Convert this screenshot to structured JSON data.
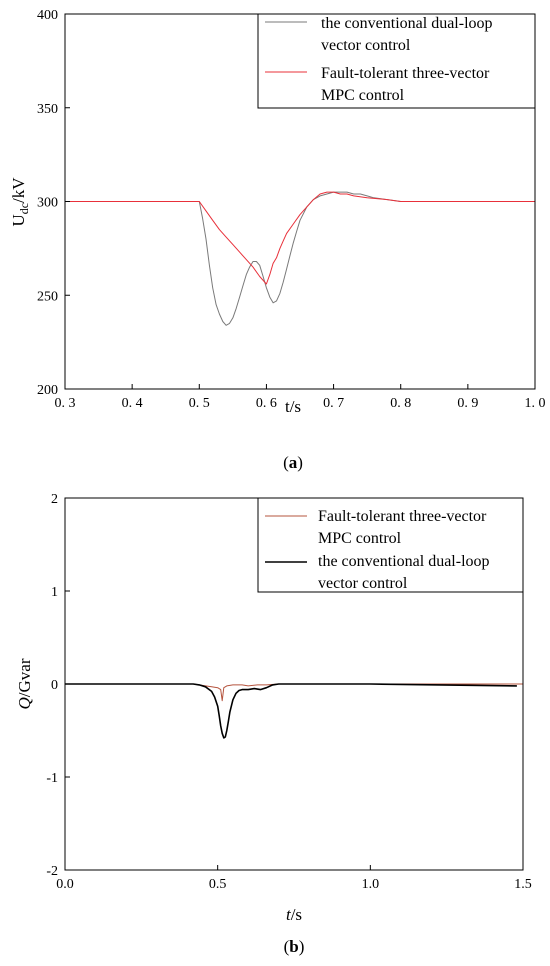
{
  "chart_data": [
    {
      "type": "line",
      "caption": "(a)",
      "caption_letter": "a",
      "xlabel": "t/s",
      "ylabel_main": "U",
      "ylabel_sub": "dc",
      "ylabel_unit": "/kV",
      "xlim": [
        0.3,
        1.0
      ],
      "ylim": [
        200,
        400
      ],
      "xticks": [
        0.3,
        0.4,
        0.5,
        0.6,
        0.7,
        0.8,
        0.9,
        1.0
      ],
      "xtick_labels": [
        "0. 3",
        "0. 4",
        "0. 5",
        "0. 6",
        "0. 7",
        "0. 8",
        "0. 9",
        "1. 0"
      ],
      "yticks": [
        200,
        250,
        300,
        350,
        400
      ],
      "ytick_labels": [
        "200",
        "250",
        "300",
        "350",
        "400"
      ],
      "legend_position": "top-right",
      "grid": false,
      "series": [
        {
          "name_line1": "the conventional dual-loop",
          "name_line2": "vector control",
          "color": "#7a7a7a",
          "x": [
            0.3,
            0.5,
            0.505,
            0.51,
            0.515,
            0.52,
            0.525,
            0.53,
            0.535,
            0.54,
            0.545,
            0.55,
            0.555,
            0.56,
            0.565,
            0.57,
            0.575,
            0.58,
            0.585,
            0.59,
            0.595,
            0.6,
            0.605,
            0.61,
            0.615,
            0.62,
            0.625,
            0.63,
            0.635,
            0.64,
            0.645,
            0.65,
            0.66,
            0.67,
            0.68,
            0.69,
            0.7,
            0.71,
            0.72,
            0.73,
            0.74,
            0.75,
            0.76,
            0.78,
            0.8,
            0.85,
            0.9,
            1.0
          ],
          "y": [
            300,
            300,
            291,
            280,
            266,
            254,
            245,
            240,
            236,
            234,
            235,
            238,
            243,
            249,
            255,
            261,
            265,
            268,
            268,
            266,
            260,
            254,
            249,
            246,
            247,
            251,
            257,
            264,
            271,
            278,
            284,
            290,
            297,
            301,
            303,
            304,
            305,
            305,
            305,
            304,
            304,
            303,
            302,
            301,
            300,
            300,
            300,
            300
          ]
        },
        {
          "name_line1": "Fault-tolerant three-vector",
          "name_line2": "MPC control",
          "color": "#e8303a",
          "x": [
            0.3,
            0.5,
            0.51,
            0.52,
            0.53,
            0.54,
            0.55,
            0.56,
            0.57,
            0.58,
            0.59,
            0.6,
            0.605,
            0.61,
            0.615,
            0.62,
            0.625,
            0.63,
            0.64,
            0.65,
            0.66,
            0.67,
            0.68,
            0.69,
            0.7,
            0.71,
            0.72,
            0.73,
            0.75,
            0.78,
            0.8,
            0.85,
            0.9,
            1.0
          ],
          "y": [
            300,
            300,
            295,
            290,
            285,
            281,
            277,
            273,
            269,
            265,
            260,
            256,
            261,
            267,
            270,
            275,
            279,
            283,
            288,
            293,
            297,
            301,
            304,
            305,
            305,
            304,
            304,
            303,
            302,
            301,
            300,
            300,
            300,
            300
          ]
        }
      ]
    },
    {
      "type": "line",
      "caption": "(b)",
      "caption_letter": "b",
      "xlabel_main": "t",
      "xlabel_unit": "/s",
      "ylabel_main": "Q",
      "ylabel_unit": "/Gvar",
      "xlim": [
        0.0,
        1.5
      ],
      "ylim": [
        -2,
        2
      ],
      "xticks": [
        0.0,
        0.5,
        1.0,
        1.5
      ],
      "xtick_labels": [
        "0.0",
        "0.5",
        "1.0",
        "1.5"
      ],
      "yticks": [
        -2,
        -1,
        0,
        1,
        2
      ],
      "ytick_labels": [
        "-2",
        "-1",
        "0",
        "1",
        "2"
      ],
      "legend_position": "top-right",
      "grid": false,
      "series": [
        {
          "name_line1": "Fault-tolerant three-vector",
          "name_line2": "MPC control",
          "color": "#b5543e",
          "x": [
            0.0,
            0.42,
            0.44,
            0.46,
            0.48,
            0.5,
            0.51,
            0.515,
            0.52,
            0.525,
            0.53,
            0.55,
            0.58,
            0.6,
            0.63,
            0.66,
            0.7,
            1.0,
            1.5
          ],
          "y": [
            0,
            0,
            -0.01,
            -0.02,
            -0.03,
            -0.04,
            -0.06,
            -0.18,
            -0.04,
            -0.03,
            -0.02,
            -0.01,
            -0.01,
            -0.02,
            -0.01,
            -0.01,
            0,
            0,
            0
          ]
        },
        {
          "name_line1": "the conventional dual-loop",
          "name_line2": "vector control",
          "color": "#000000",
          "x": [
            0.0,
            0.42,
            0.44,
            0.46,
            0.48,
            0.49,
            0.5,
            0.505,
            0.51,
            0.515,
            0.52,
            0.525,
            0.53,
            0.535,
            0.54,
            0.55,
            0.56,
            0.57,
            0.58,
            0.6,
            0.62,
            0.64,
            0.66,
            0.68,
            0.7,
            1.0,
            1.48
          ],
          "y": [
            0,
            0,
            -0.01,
            -0.03,
            -0.08,
            -0.14,
            -0.24,
            -0.34,
            -0.45,
            -0.53,
            -0.58,
            -0.57,
            -0.5,
            -0.4,
            -0.3,
            -0.17,
            -0.1,
            -0.07,
            -0.06,
            -0.06,
            -0.05,
            -0.06,
            -0.04,
            -0.01,
            0,
            0,
            -0.02
          ]
        }
      ]
    }
  ]
}
